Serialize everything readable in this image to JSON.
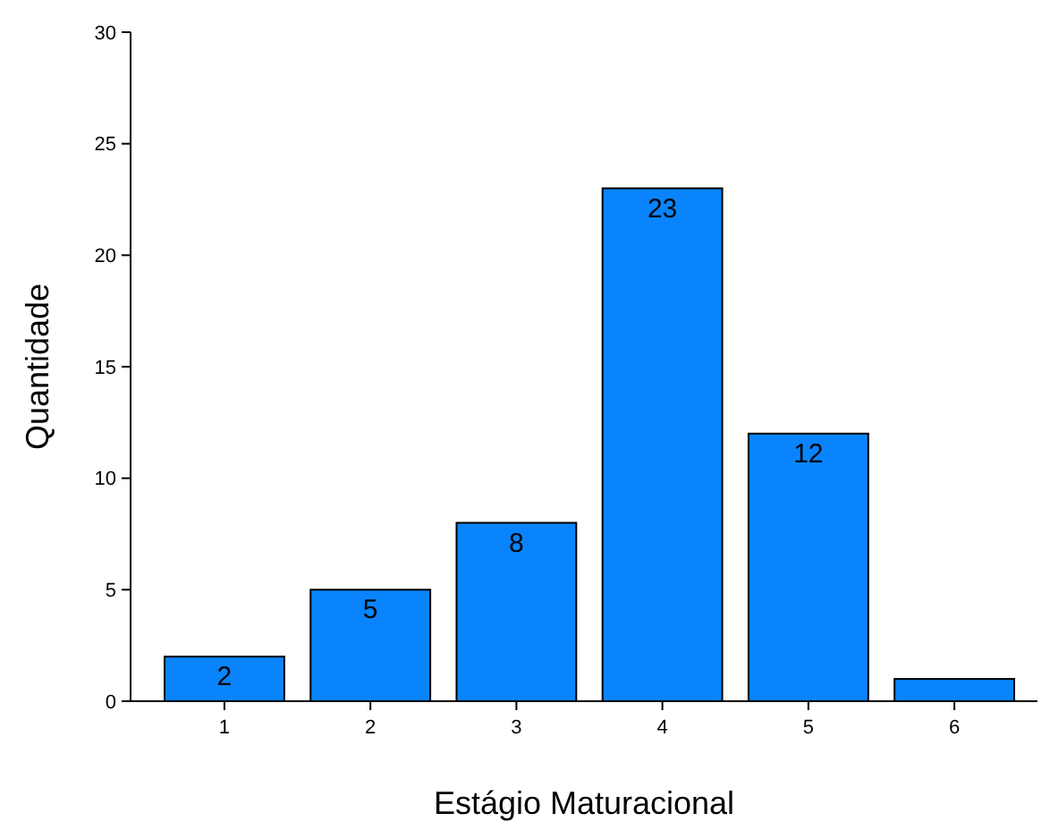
{
  "chart_data": {
    "type": "bar",
    "xlabel": "Estágio Maturacional",
    "ylabel": "Quantidade",
    "categories": [
      "1",
      "2",
      "3",
      "4",
      "5",
      "6"
    ],
    "values": [
      2,
      5,
      8,
      23,
      12,
      1
    ],
    "value_labels": [
      "2",
      "5",
      "8",
      "23",
      "12",
      null
    ],
    "color": "#0a84fc",
    "ylim": [
      0,
      30
    ],
    "yticks": [
      0,
      5,
      10,
      15,
      20,
      25,
      30
    ],
    "grid": false
  }
}
